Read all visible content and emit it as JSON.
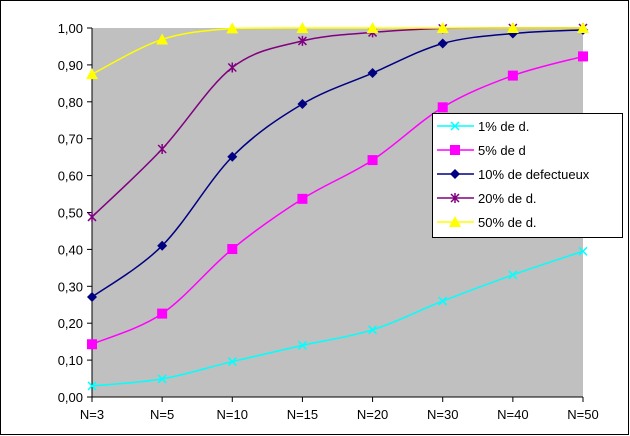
{
  "chart_data": {
    "type": "line",
    "title": "",
    "xlabel": "",
    "ylabel": "",
    "categories": [
      "N=3",
      "N=5",
      "N=10",
      "N=15",
      "N=20",
      "N=30",
      "N=40",
      "N=50"
    ],
    "ylim": [
      0,
      1
    ],
    "yticks": [
      "0,00",
      "0,10",
      "0,20",
      "0,30",
      "0,40",
      "0,50",
      "0,60",
      "0,70",
      "0,80",
      "0,90",
      "1,00"
    ],
    "grid": false,
    "smooth": true,
    "plot_background": "#C0C0C0",
    "legend_position": "right",
    "series": [
      {
        "name": "1% de d.",
        "color": "#00FFFF",
        "marker": "x",
        "values": [
          0.03,
          0.049,
          0.096,
          0.14,
          0.182,
          0.26,
          0.331,
          0.395
        ]
      },
      {
        "name": "5% de d",
        "color": "#FF00FF",
        "marker": "square",
        "values": [
          0.143,
          0.226,
          0.401,
          0.537,
          0.642,
          0.785,
          0.871,
          0.923
        ]
      },
      {
        "name": "10% de defectueux",
        "color": "#000080",
        "marker": "diamond",
        "values": [
          0.271,
          0.41,
          0.651,
          0.794,
          0.878,
          0.958,
          0.985,
          0.995
        ]
      },
      {
        "name": "20% de d.",
        "color": "#800080",
        "marker": "star",
        "values": [
          0.488,
          0.672,
          0.893,
          0.965,
          0.988,
          0.999,
          1.0,
          1.0
        ]
      },
      {
        "name": "50% de d.",
        "color": "#FFFF00",
        "marker": "triangle",
        "values": [
          0.875,
          0.969,
          0.999,
          1.0,
          1.0,
          1.0,
          1.0,
          1.0
        ]
      }
    ]
  }
}
